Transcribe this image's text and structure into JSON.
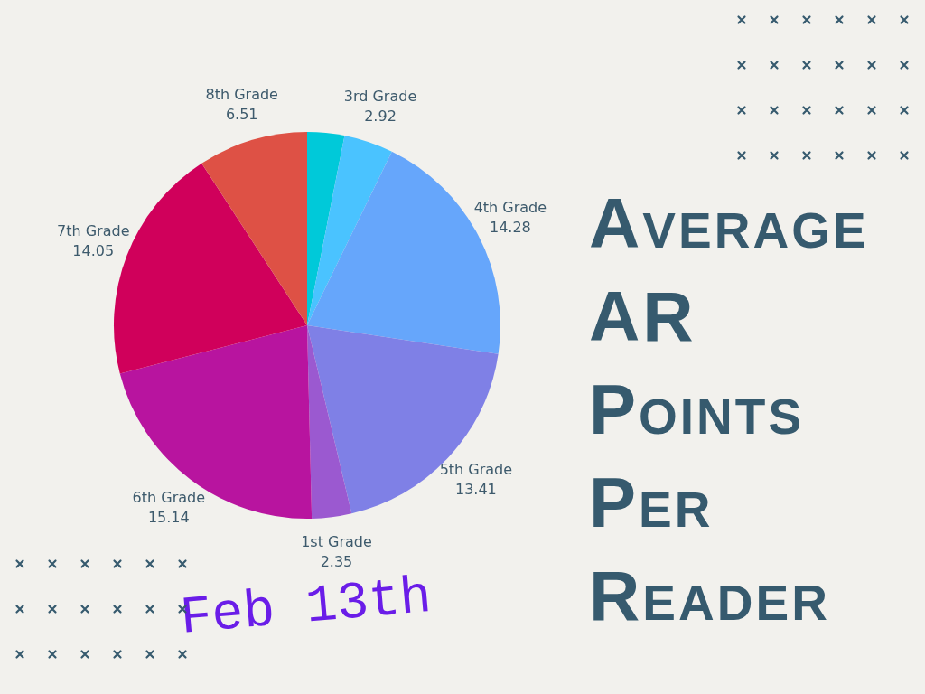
{
  "chart_data": {
    "type": "pie",
    "title": "Average AR Points Per Reader",
    "categories": [
      null,
      "3rd Grade",
      "4th Grade",
      "5th Grade",
      "1st Grade",
      "6th Grade",
      "7th Grade",
      "8th Grade"
    ],
    "values": [
      2.2,
      2.92,
      14.28,
      13.41,
      2.35,
      15.14,
      14.05,
      6.51
    ],
    "value_labels": [
      null,
      "2.92",
      "14.28",
      "13.41",
      "2.35",
      "15.14",
      "14.05",
      "6.51"
    ],
    "colors": [
      "#00c9d9",
      "#4ac3ff",
      "#66a6fb",
      "#7f80e6",
      "#9b59d0",
      "#b8149f",
      "#d0005b",
      "#de5145"
    ],
    "annotations": [
      "Feb 13th"
    ]
  }
}
